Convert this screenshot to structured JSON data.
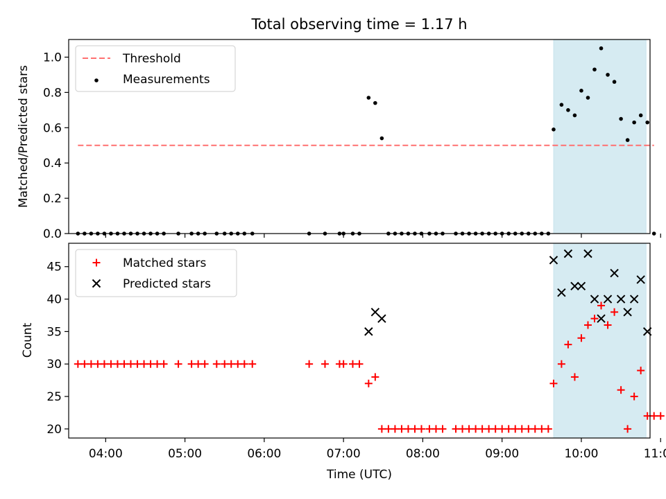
{
  "chart_data": [
    {
      "type": "scatter",
      "title": "Total observing time = 1.17 h",
      "ylabel": "Matched/Predicted stars",
      "ylim": [
        0,
        1.1
      ],
      "yticks": [
        "0.0",
        "0.2",
        "0.4",
        "0.6",
        "0.8",
        "1.0"
      ],
      "xlim": [
        "03:32",
        "10:52"
      ],
      "highlight_range": [
        "09:39",
        "10:49"
      ],
      "legend_position": "top-left",
      "threshold": {
        "name": "Threshold",
        "value": 0.5,
        "x_range": [
          "03:39",
          "10:55"
        ],
        "color": "#ff7070"
      },
      "series": [
        {
          "name": "Measurements",
          "color": "#000000",
          "x": [
            "03:39",
            "03:44",
            "03:49",
            "03:54",
            "03:59",
            "04:04",
            "04:09",
            "04:14",
            "04:19",
            "04:24",
            "04:29",
            "04:34",
            "04:39",
            "04:44",
            "04:55",
            "05:05",
            "05:10",
            "05:15",
            "05:24",
            "05:30",
            "05:35",
            "05:40",
            "05:45",
            "05:51",
            "06:34",
            "06:46",
            "06:57",
            "07:00",
            "07:07",
            "07:12",
            "07:19",
            "07:24",
            "07:29",
            "07:34",
            "07:39",
            "07:44",
            "07:49",
            "07:54",
            "07:59",
            "08:05",
            "08:10",
            "08:15",
            "08:25",
            "08:30",
            "08:35",
            "08:40",
            "08:45",
            "08:50",
            "08:55",
            "09:00",
            "09:05",
            "09:10",
            "09:15",
            "09:20",
            "09:25",
            "09:30",
            "09:35",
            "09:39",
            "09:45",
            "09:50",
            "09:55",
            "10:00",
            "10:05",
            "10:10",
            "10:15",
            "10:20",
            "10:25",
            "10:30",
            "10:35",
            "10:40",
            "10:45",
            "10:50",
            "10:55"
          ],
          "y": [
            0,
            0,
            0,
            0,
            0,
            0,
            0,
            0,
            0,
            0,
            0,
            0,
            0,
            0,
            0,
            0,
            0,
            0,
            0,
            0,
            0,
            0,
            0,
            0,
            0,
            0,
            0,
            0,
            0,
            0,
            0.77,
            0.74,
            0.54,
            0,
            0,
            0,
            0,
            0,
            0,
            0,
            0,
            0,
            0,
            0,
            0,
            0,
            0,
            0,
            0,
            0,
            0,
            0,
            0,
            0,
            0,
            0,
            0,
            0.59,
            0.73,
            0.7,
            0.67,
            0.81,
            0.77,
            0.93,
            1.05,
            0.9,
            0.86,
            0.65,
            0.53,
            0.63,
            0.67,
            0.63,
            0
          ]
        }
      ]
    },
    {
      "type": "scatter",
      "title": "",
      "xlabel": "Time (UTC)",
      "ylabel": "Count",
      "ylim": [
        18.6,
        48.6
      ],
      "yticks": [
        "20",
        "25",
        "30",
        "35",
        "40",
        "45"
      ],
      "xlim": [
        "03:32",
        "10:52"
      ],
      "xticks": [
        "04:00",
        "05:00",
        "06:00",
        "07:00",
        "08:00",
        "09:00",
        "10:00",
        "11:00"
      ],
      "highlight_range": [
        "09:39",
        "10:49"
      ],
      "legend_position": "top-left",
      "series": [
        {
          "name": "Matched stars",
          "color": "#ff0000",
          "marker": "+",
          "x": [
            "03:39",
            "03:44",
            "03:49",
            "03:54",
            "03:59",
            "04:04",
            "04:09",
            "04:14",
            "04:19",
            "04:24",
            "04:29",
            "04:34",
            "04:39",
            "04:44",
            "04:55",
            "05:05",
            "05:10",
            "05:15",
            "05:24",
            "05:30",
            "05:35",
            "05:40",
            "05:45",
            "05:51",
            "06:34",
            "06:46",
            "06:57",
            "07:00",
            "07:07",
            "07:12",
            "07:19",
            "07:24",
            "07:29",
            "07:34",
            "07:39",
            "07:44",
            "07:49",
            "07:54",
            "07:59",
            "08:05",
            "08:10",
            "08:15",
            "08:25",
            "08:30",
            "08:35",
            "08:40",
            "08:45",
            "08:50",
            "08:55",
            "09:00",
            "09:05",
            "09:10",
            "09:15",
            "09:20",
            "09:25",
            "09:30",
            "09:35",
            "09:39",
            "09:45",
            "09:50",
            "09:55",
            "10:00",
            "10:05",
            "10:10",
            "10:15",
            "10:20",
            "10:25",
            "10:30",
            "10:35",
            "10:40",
            "10:45",
            "10:50",
            "10:55",
            "11:00"
          ],
          "y": [
            30,
            30,
            30,
            30,
            30,
            30,
            30,
            30,
            30,
            30,
            30,
            30,
            30,
            30,
            30,
            30,
            30,
            30,
            30,
            30,
            30,
            30,
            30,
            30,
            30,
            30,
            30,
            30,
            30,
            30,
            27,
            28,
            20,
            20,
            20,
            20,
            20,
            20,
            20,
            20,
            20,
            20,
            20,
            20,
            20,
            20,
            20,
            20,
            20,
            20,
            20,
            20,
            20,
            20,
            20,
            20,
            20,
            27,
            30,
            33,
            28,
            34,
            36,
            37,
            39,
            36,
            38,
            26,
            20,
            25,
            29,
            22,
            22,
            22
          ]
        },
        {
          "name": "Predicted stars",
          "color": "#000000",
          "marker": "x",
          "x": [
            "07:19",
            "07:24",
            "07:29",
            "09:39",
            "09:45",
            "09:50",
            "09:55",
            "10:00",
            "10:05",
            "10:10",
            "10:15",
            "10:20",
            "10:25",
            "10:30",
            "10:35",
            "10:40",
            "10:45",
            "10:50"
          ],
          "y": [
            35,
            38,
            37,
            46,
            41,
            47,
            42,
            42,
            47,
            40,
            37,
            40,
            44,
            40,
            38,
            40,
            43,
            35
          ]
        }
      ]
    }
  ]
}
